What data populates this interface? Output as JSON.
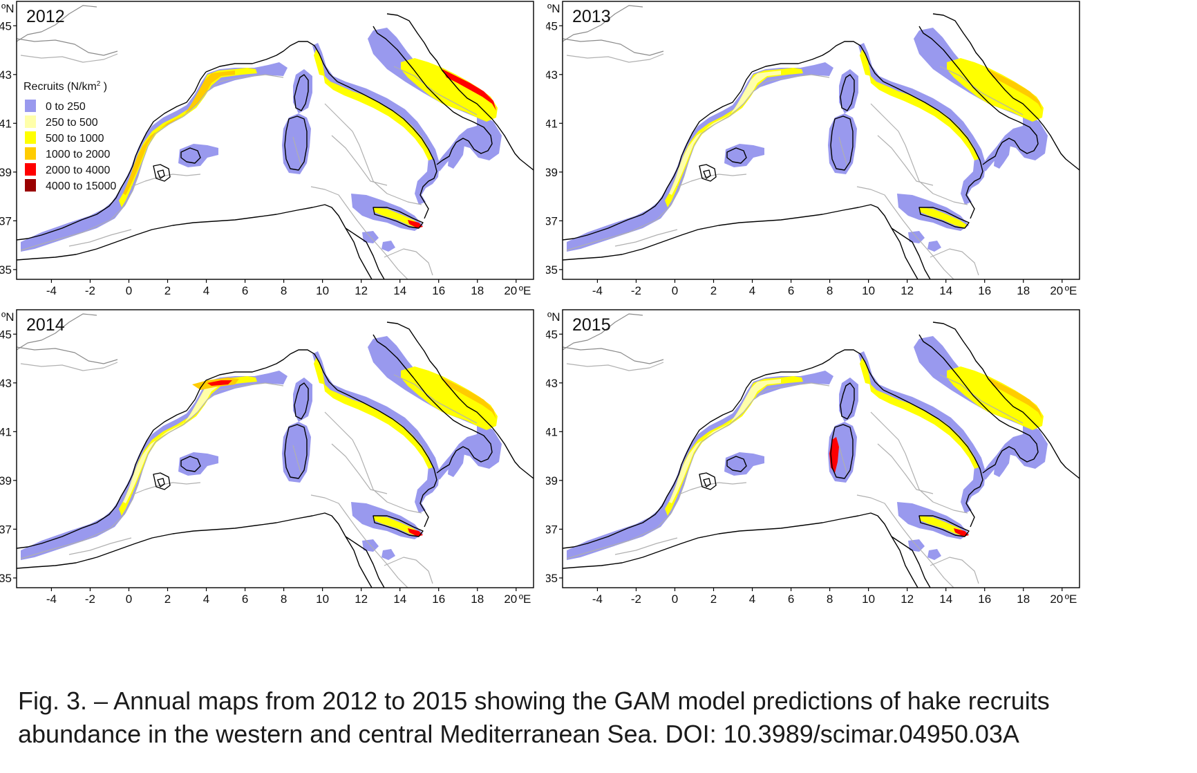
{
  "panels": [
    {
      "year": "2012",
      "show_legend": true,
      "abundance": "high"
    },
    {
      "year": "2013",
      "show_legend": false,
      "abundance": "medium"
    },
    {
      "year": "2014",
      "show_legend": false,
      "abundance": "medium"
    },
    {
      "year": "2015",
      "show_legend": false,
      "abundance": "medium"
    }
  ],
  "axes": {
    "lat_unit": "ºN",
    "lon_unit": "ºE",
    "lat_ticks": [
      "45",
      "43",
      "41",
      "39",
      "37",
      "35"
    ],
    "lon_ticks": [
      "-4",
      "-2",
      "0",
      "2",
      "4",
      "6",
      "8",
      "10",
      "12",
      "14",
      "16",
      "18",
      "20"
    ]
  },
  "legend": {
    "title": "Recruits (N/km",
    "title_sup": "2",
    "title_end": ")",
    "classes": [
      {
        "label": "0  to  250",
        "color": "#9999ee"
      },
      {
        "label": "250  to  500",
        "color": "#ffffaa"
      },
      {
        "label": "500  to  1000",
        "color": "#ffff00"
      },
      {
        "label": "1000  to  2000",
        "color": "#ffcc00"
      },
      {
        "label": "2000  to  4000",
        "color": "#ff0000"
      },
      {
        "label": "4000  to  15000",
        "color": "#990000"
      }
    ]
  },
  "colors": {
    "coast": "#000000",
    "isobath": "#b0b0b0",
    "low": "#9999ee",
    "c250": "#ffffaa",
    "c500": "#ffff00",
    "c1000": "#ffcc00",
    "c2000": "#ff0000"
  },
  "caption": "Fig. 3. – Annual maps from 2012 to 2015 showing the GAM model predictions of hake recruits abundance in the western and central Mediterranean Sea. DOI: 10.3989/scimar.04950.03A"
}
